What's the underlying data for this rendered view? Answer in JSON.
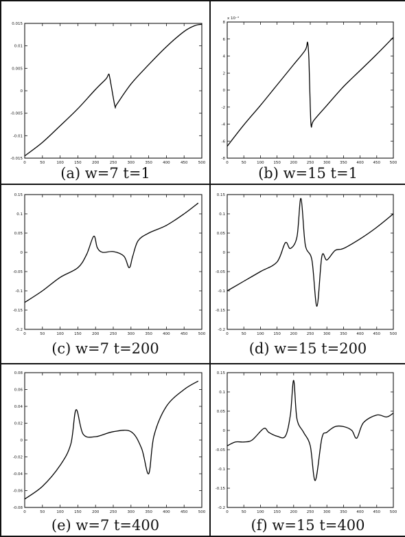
{
  "chart_data": [
    {
      "type": "line",
      "caption": "(a) w=7 t=1",
      "xlim": [
        0,
        500
      ],
      "ylim": [
        -0.015,
        0.015
      ],
      "x_ticks": [
        0,
        50,
        100,
        150,
        200,
        250,
        300,
        350,
        400,
        450,
        500
      ],
      "y_ticks": [
        -0.015,
        -0.01,
        -0.005,
        0,
        0.005,
        0.01,
        0.015
      ],
      "y_tick_labels": [
        "-0.015",
        "-0.01",
        "-0.005",
        "0",
        "0.005",
        "0.01",
        "0.015"
      ],
      "grid": false,
      "series": [
        {
          "x": [
            0,
            50,
            100,
            150,
            200,
            230,
            237,
            240,
            245,
            255,
            260,
            300,
            350,
            400,
            450,
            480,
            500
          ],
          "y": [
            -0.0145,
            -0.0115,
            -0.0078,
            -0.004,
            0.0003,
            0.0027,
            0.0037,
            0.003,
            0.0008,
            -0.0035,
            -0.003,
            0.0015,
            0.0058,
            0.0098,
            0.0132,
            0.0145,
            0.0148
          ]
        }
      ]
    },
    {
      "type": "line",
      "caption": "(b) w=15 t=1",
      "xlim": [
        0,
        500
      ],
      "ylim": [
        -8,
        8
      ],
      "x_ticks": [
        0,
        50,
        100,
        150,
        200,
        250,
        300,
        350,
        400,
        450,
        500
      ],
      "y_ticks": [
        -8,
        -6,
        -4,
        -2,
        0,
        2,
        4,
        6,
        8
      ],
      "y_tick_labels": [
        "-8",
        "-6",
        "-4",
        "-2",
        "0",
        "2",
        "4",
        "6",
        "8"
      ],
      "y_multiplier_label": "x 10⁻³",
      "grid": false,
      "series": [
        {
          "x": [
            0,
            50,
            100,
            150,
            200,
            235,
            242,
            246,
            250,
            253,
            260,
            300,
            350,
            400,
            450,
            500
          ],
          "y": [
            -6.6,
            -4.1,
            -1.8,
            0.6,
            3.0,
            4.7,
            5.6,
            3.5,
            -2.0,
            -4.3,
            -3.6,
            -1.8,
            0.4,
            2.3,
            4.2,
            6.2
          ]
        }
      ]
    },
    {
      "type": "line",
      "caption": "(c) w=7 t=200",
      "xlim": [
        0,
        500
      ],
      "ylim": [
        -0.2,
        0.15
      ],
      "x_ticks": [
        0,
        50,
        100,
        150,
        200,
        250,
        300,
        350,
        400,
        450,
        500
      ],
      "y_ticks": [
        -0.2,
        -0.15,
        -0.1,
        -0.05,
        0,
        0.05,
        0.1,
        0.15
      ],
      "y_tick_labels": [
        "-0.2",
        "-0.15",
        "-0.1",
        "-0.05",
        "0",
        "0.05",
        "0.1",
        "0.15"
      ],
      "grid": false,
      "series": [
        {
          "x": [
            0,
            50,
            100,
            150,
            175,
            195,
            205,
            220,
            250,
            280,
            295,
            305,
            320,
            350,
            400,
            450,
            490
          ],
          "y": [
            -0.13,
            -0.1,
            -0.065,
            -0.04,
            -0.005,
            0.042,
            0.012,
            0.0,
            0.002,
            -0.01,
            -0.04,
            -0.01,
            0.03,
            0.05,
            0.07,
            0.1,
            0.128
          ]
        }
      ]
    },
    {
      "type": "line",
      "caption": "(d) w=15 t=200",
      "xlim": [
        0,
        500
      ],
      "ylim": [
        -0.2,
        0.15
      ],
      "x_ticks": [
        0,
        50,
        100,
        150,
        200,
        250,
        300,
        350,
        400,
        450,
        500
      ],
      "y_ticks": [
        -0.2,
        -0.15,
        -0.1,
        -0.05,
        0,
        0.05,
        0.1,
        0.15
      ],
      "y_tick_labels": [
        "-0.2",
        "-0.15",
        "-0.1",
        "-0.05",
        "0",
        "0.05",
        "0.1",
        "0.15"
      ],
      "grid": false,
      "series": [
        {
          "x": [
            0,
            50,
            100,
            150,
            175,
            190,
            210,
            222,
            235,
            255,
            270,
            285,
            300,
            325,
            350,
            400,
            450,
            500
          ],
          "y": [
            -0.1,
            -0.075,
            -0.05,
            -0.025,
            0.025,
            0.01,
            0.04,
            0.14,
            0.02,
            -0.02,
            -0.14,
            -0.01,
            -0.02,
            0.005,
            0.01,
            0.035,
            0.065,
            0.1
          ]
        }
      ]
    },
    {
      "type": "line",
      "caption": "(e) w=7 t=400",
      "xlim": [
        0,
        500
      ],
      "ylim": [
        -0.08,
        0.08
      ],
      "x_ticks": [
        0,
        50,
        100,
        150,
        200,
        250,
        300,
        350,
        400,
        450,
        500
      ],
      "y_ticks": [
        -0.08,
        -0.06,
        -0.04,
        -0.02,
        0,
        0.02,
        0.04,
        0.06,
        0.08
      ],
      "y_tick_labels": [
        "-0.08",
        "-0.06",
        "-0.04",
        "-0.02",
        "0",
        "0.02",
        "0.04",
        "0.06",
        "0.08"
      ],
      "grid": false,
      "series": [
        {
          "x": [
            0,
            50,
            100,
            130,
            145,
            165,
            200,
            250,
            300,
            330,
            350,
            365,
            400,
            450,
            490
          ],
          "y": [
            -0.07,
            -0.055,
            -0.03,
            -0.005,
            0.036,
            0.007,
            0.004,
            0.01,
            0.01,
            -0.01,
            -0.04,
            0.005,
            0.04,
            0.06,
            0.07
          ]
        }
      ]
    },
    {
      "type": "line",
      "caption": "(f) w=15 t=400",
      "xlim": [
        0,
        500
      ],
      "ylim": [
        -0.2,
        0.15
      ],
      "x_ticks": [
        0,
        50,
        100,
        150,
        200,
        250,
        300,
        350,
        400,
        450,
        500
      ],
      "y_ticks": [
        -0.2,
        -0.15,
        -0.1,
        -0.05,
        0,
        0.05,
        0.1,
        0.15
      ],
      "y_tick_labels": [
        "-0.2",
        "-0.15",
        "-0.1",
        "-0.05",
        "0",
        "0.05",
        "0.1",
        "0.15"
      ],
      "grid": false,
      "series": [
        {
          "x": [
            0,
            25,
            50,
            75,
            110,
            125,
            150,
            175,
            190,
            200,
            210,
            230,
            250,
            265,
            285,
            300,
            325,
            350,
            375,
            390,
            410,
            450,
            480,
            500
          ],
          "y": [
            -0.04,
            -0.03,
            -0.03,
            -0.025,
            0.005,
            -0.005,
            -0.015,
            -0.015,
            0.04,
            0.13,
            0.03,
            -0.005,
            -0.04,
            -0.13,
            -0.02,
            -0.005,
            0.01,
            0.01,
            0.0,
            -0.02,
            0.02,
            0.04,
            0.035,
            0.045
          ]
        }
      ]
    }
  ]
}
